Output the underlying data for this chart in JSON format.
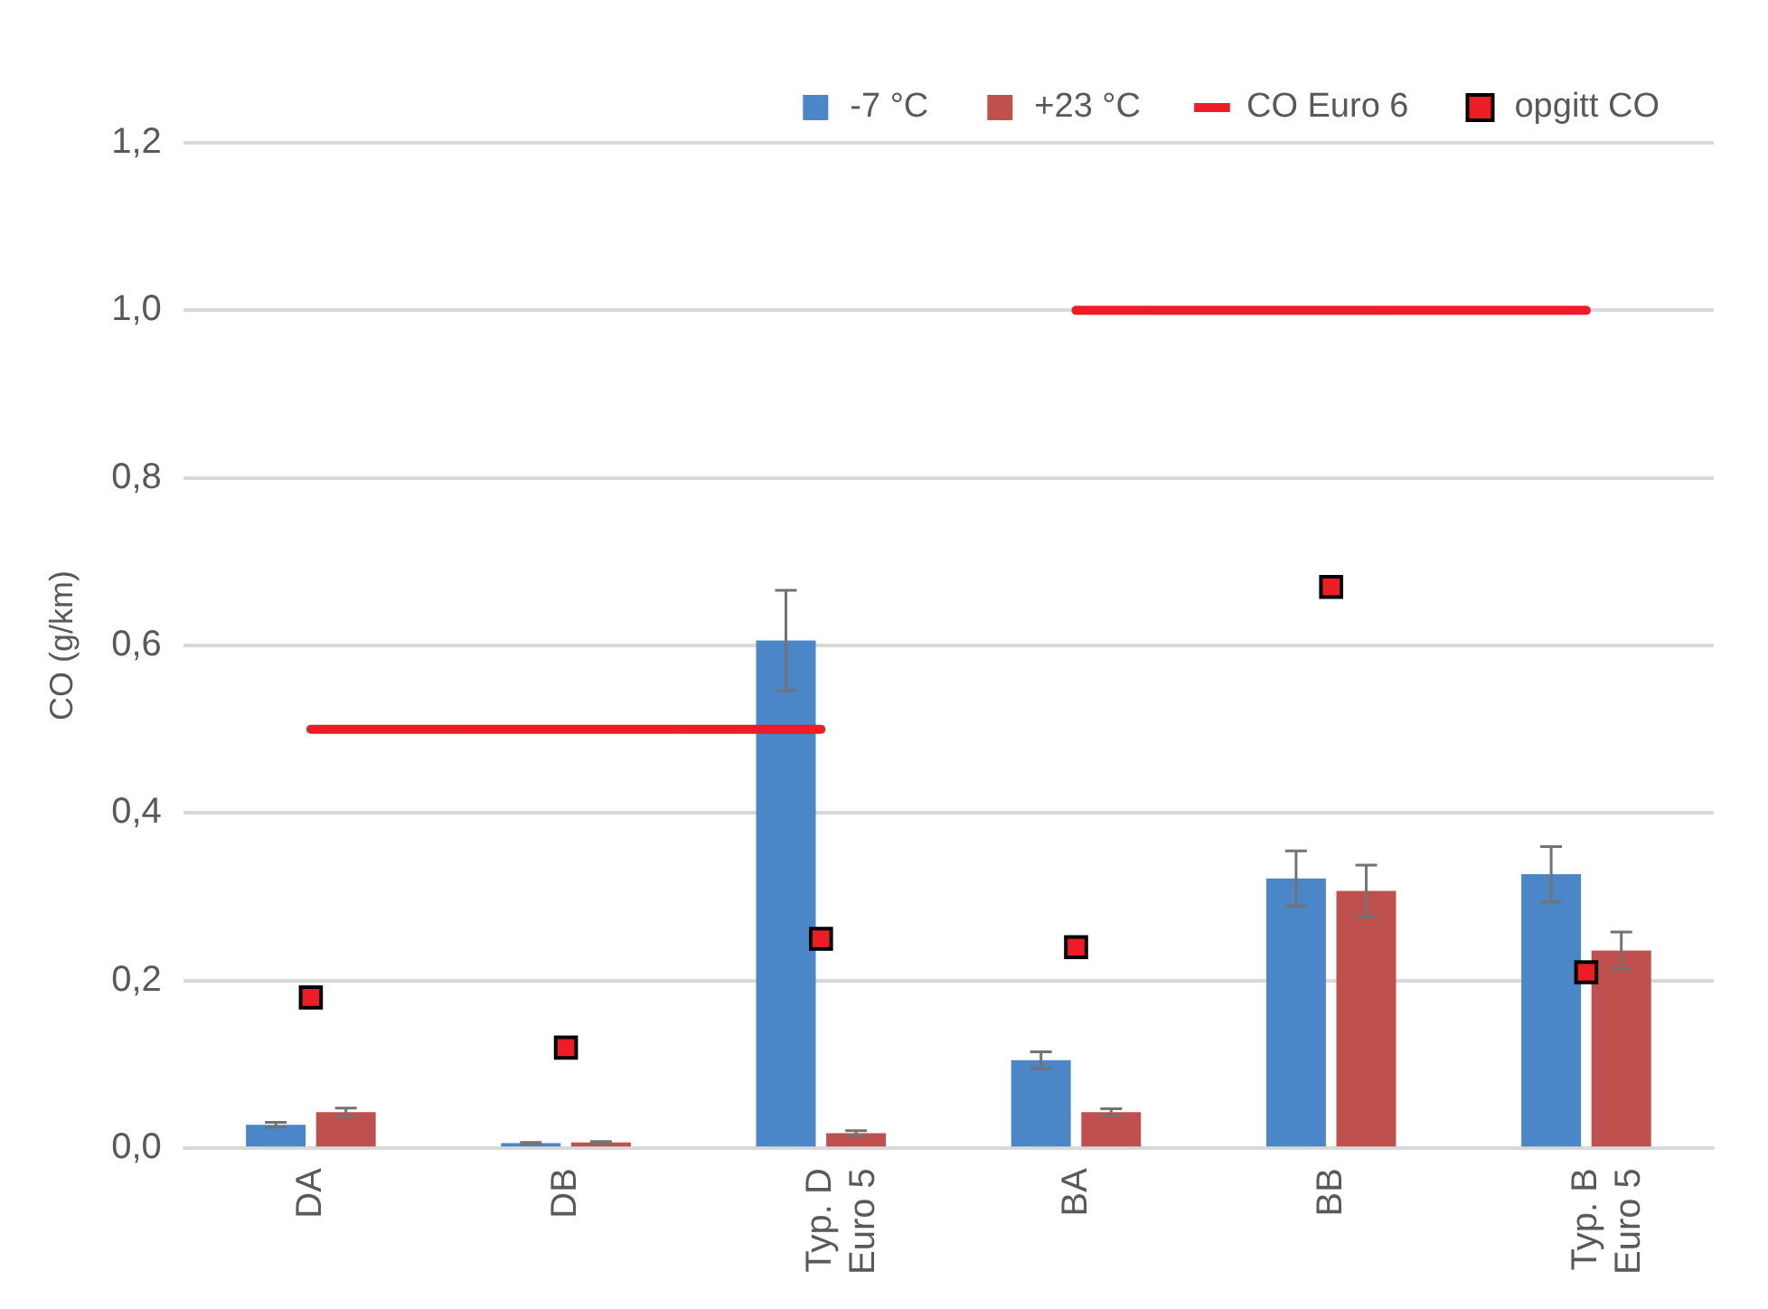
{
  "chart_data": {
    "type": "bar",
    "ylabel": "CO (g/km)",
    "categories": [
      "DA",
      "DB",
      "Typ. D\nEuro 5",
      "BA",
      "BB",
      "Typ. B\nEuro 5"
    ],
    "series": [
      {
        "name": "-7 °C",
        "color": "#4a86c8",
        "values": [
          0.028,
          0.006,
          0.606,
          0.105,
          0.322,
          0.327
        ],
        "errors": [
          0.003,
          0.001,
          0.06,
          0.01,
          0.033,
          0.033
        ]
      },
      {
        "name": "+23 °C",
        "color": "#c0504d",
        "values": [
          0.043,
          0.007,
          0.018,
          0.043,
          0.307,
          0.236
        ],
        "errors": [
          0.005,
          0.001,
          0.003,
          0.004,
          0.031,
          0.022
        ]
      },
      {
        "name": "CO Euro 6",
        "type": "line",
        "color": "#ee1c25",
        "values": [
          0.5,
          0.5,
          0.5,
          1.0,
          1.0,
          1.0
        ]
      },
      {
        "name": "opgitt CO",
        "type": "scatter",
        "color": "#ee1c25",
        "marker": "square",
        "values": [
          0.18,
          0.12,
          0.25,
          0.24,
          0.67,
          0.21
        ]
      }
    ],
    "ylim": [
      0,
      1.2
    ],
    "yticks": [
      {
        "value": 0,
        "label": "0,0"
      },
      {
        "value": 0.2,
        "label": "0,2"
      },
      {
        "value": 0.4,
        "label": "0,4"
      },
      {
        "value": 0.6,
        "label": "0,6"
      },
      {
        "value": 0.8,
        "label": "0,8"
      },
      {
        "value": 1.0,
        "label": "1,0"
      },
      {
        "value": 1.2,
        "label": "1,2"
      }
    ],
    "grid": "y",
    "legend": "top right"
  }
}
